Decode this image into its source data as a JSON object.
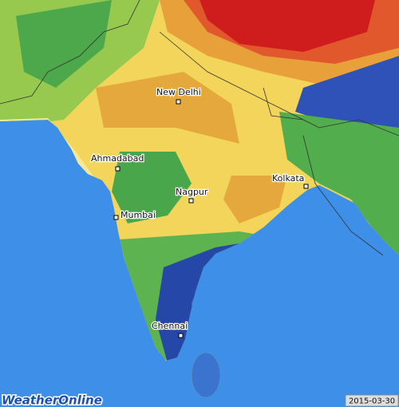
{
  "map": {
    "cities": [
      {
        "label": "New Delhi"
      },
      {
        "label": "Ahmadabad"
      },
      {
        "label": "Nagpur"
      },
      {
        "label": "Kolkata"
      },
      {
        "label": "Mumbai"
      },
      {
        "label": "Chennai"
      }
    ]
  },
  "footer": {
    "logo": "WeatherOnline",
    "date": "2015-03-30"
  }
}
